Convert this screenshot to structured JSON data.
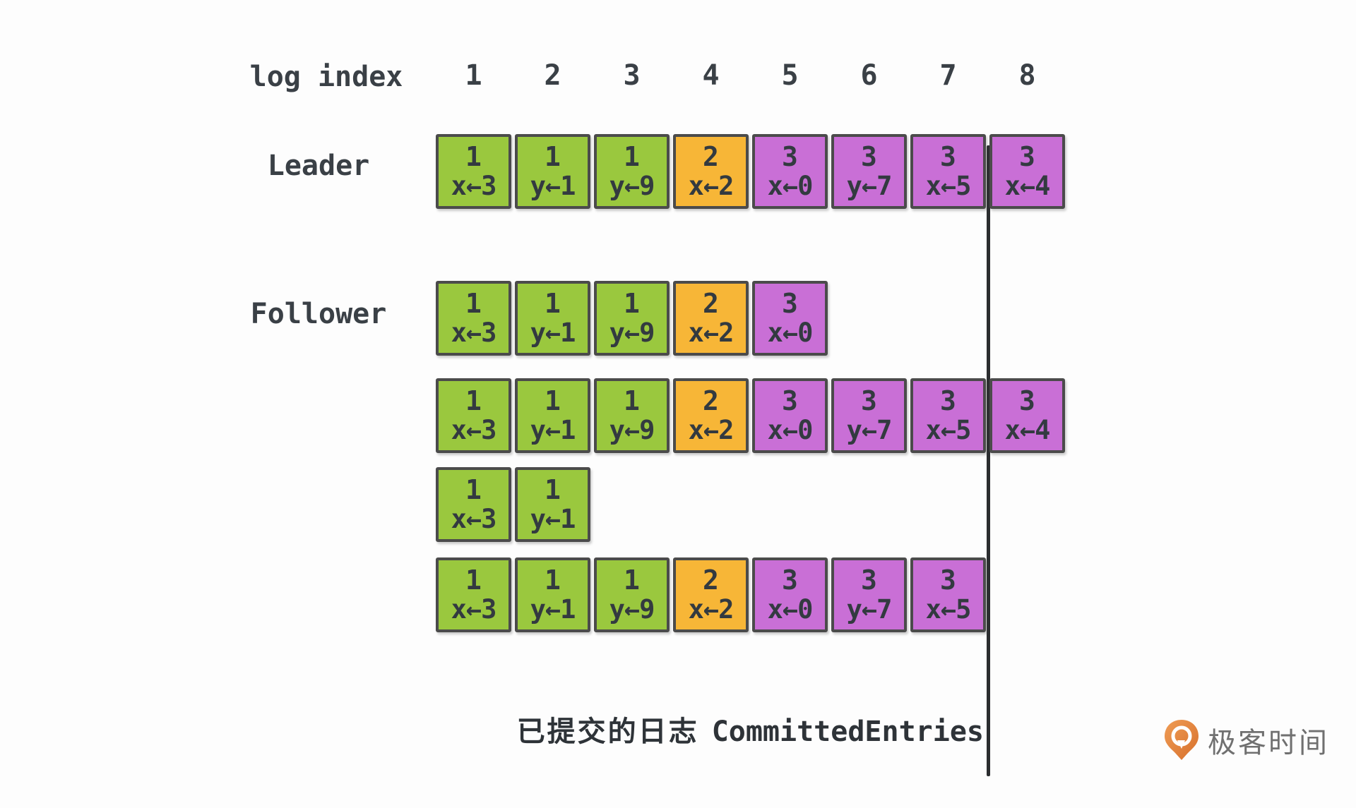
{
  "header": {
    "label": "log index",
    "indices": [
      "1",
      "2",
      "3",
      "4",
      "5",
      "6",
      "7",
      "8"
    ]
  },
  "term_colors": {
    "1": "#9ac83e",
    "2": "#f7b637",
    "3": "#c96fd6"
  },
  "rows": [
    {
      "label": "Leader",
      "entries": [
        {
          "term": "1",
          "op": "x←3"
        },
        {
          "term": "1",
          "op": "y←1"
        },
        {
          "term": "1",
          "op": "y←9"
        },
        {
          "term": "2",
          "op": "x←2"
        },
        {
          "term": "3",
          "op": "x←0"
        },
        {
          "term": "3",
          "op": "y←7"
        },
        {
          "term": "3",
          "op": "x←5"
        },
        {
          "term": "3",
          "op": "x←4"
        }
      ]
    },
    {
      "label": "Follower",
      "entries": [
        {
          "term": "1",
          "op": "x←3"
        },
        {
          "term": "1",
          "op": "y←1"
        },
        {
          "term": "1",
          "op": "y←9"
        },
        {
          "term": "2",
          "op": "x←2"
        },
        {
          "term": "3",
          "op": "x←0"
        }
      ]
    },
    {
      "label": "",
      "entries": [
        {
          "term": "1",
          "op": "x←3"
        },
        {
          "term": "1",
          "op": "y←1"
        },
        {
          "term": "1",
          "op": "y←9"
        },
        {
          "term": "2",
          "op": "x←2"
        },
        {
          "term": "3",
          "op": "x←0"
        },
        {
          "term": "3",
          "op": "y←7"
        },
        {
          "term": "3",
          "op": "x←5"
        },
        {
          "term": "3",
          "op": "x←4"
        }
      ]
    },
    {
      "label": "",
      "entries": [
        {
          "term": "1",
          "op": "x←3"
        },
        {
          "term": "1",
          "op": "y←1"
        }
      ]
    },
    {
      "label": "",
      "entries": [
        {
          "term": "1",
          "op": "x←3"
        },
        {
          "term": "1",
          "op": "y←1"
        },
        {
          "term": "1",
          "op": "y←9"
        },
        {
          "term": "2",
          "op": "x←2"
        },
        {
          "term": "3",
          "op": "x←0"
        },
        {
          "term": "3",
          "op": "y←7"
        },
        {
          "term": "3",
          "op": "x←5"
        }
      ]
    }
  ],
  "committed": {
    "caption_cn": "已提交的日志",
    "caption_en": "CommittedEntries",
    "line_after_index": 7
  },
  "logo": {
    "text": "极客时间",
    "icon": "geektime-pin-icon",
    "icon_color": "#e2803c"
  }
}
